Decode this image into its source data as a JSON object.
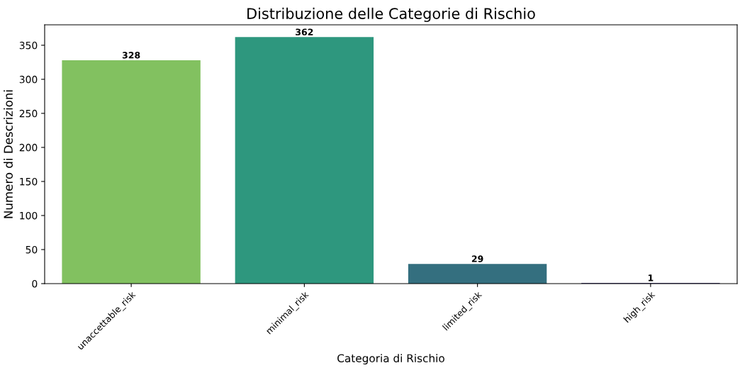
{
  "chart_data": {
    "type": "bar",
    "title": "Distribuzione delle Categorie di Rischio",
    "xlabel": "Categoria di Rischio",
    "ylabel": "Numero di Descrizioni",
    "categories": [
      "unaccettable_risk",
      "minimal_risk",
      "limited_risk",
      "high_risk"
    ],
    "values": [
      328,
      362,
      29,
      1
    ],
    "colors": [
      "#82c160",
      "#2e977e",
      "#346f7f",
      "#433a72"
    ],
    "ylim": [
      0,
      380
    ],
    "yticks": [
      0,
      50,
      100,
      150,
      200,
      250,
      300,
      350
    ],
    "data_labels": true,
    "grid": false,
    "legend": false
  }
}
